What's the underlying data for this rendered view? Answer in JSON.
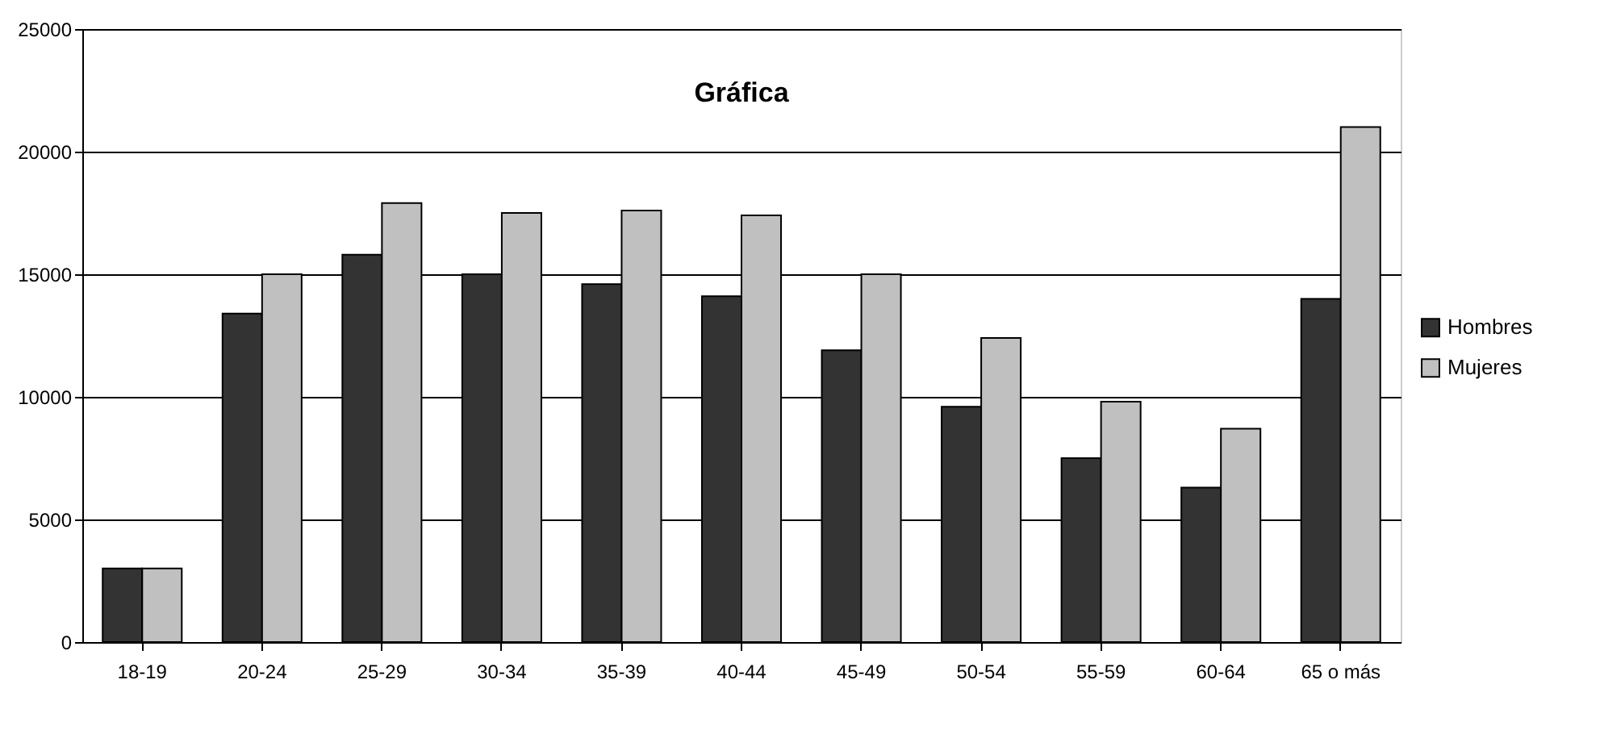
{
  "chart_data": {
    "type": "bar",
    "title": "Gráfica",
    "categories": [
      "18-19",
      "20-24",
      "25-29",
      "30-34",
      "35-39",
      "40-44",
      "45-49",
      "50-54",
      "55-59",
      "60-64",
      "65 o más"
    ],
    "series": [
      {
        "name": "Hombres",
        "color": "#333333",
        "values": [
          3000,
          13400,
          15800,
          15000,
          14600,
          14100,
          11900,
          9600,
          7500,
          6300,
          14000
        ]
      },
      {
        "name": "Mujeres",
        "color": "#c0c0c0",
        "values": [
          3000,
          15000,
          17900,
          17500,
          17600,
          17400,
          15000,
          12400,
          9800,
          8700,
          21000
        ]
      }
    ],
    "ylim": [
      0,
      25000
    ],
    "yticks": [
      0,
      5000,
      10000,
      15000,
      20000,
      25000
    ],
    "grid": "y",
    "legend": "right"
  }
}
